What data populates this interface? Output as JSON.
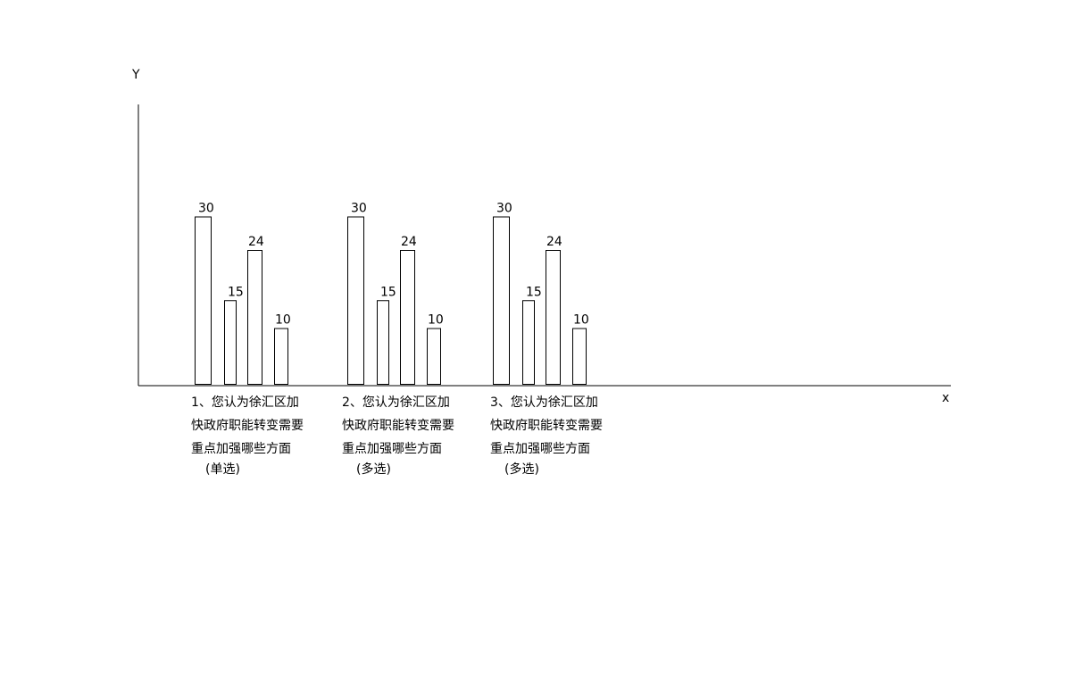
{
  "chart_data": {
    "type": "bar",
    "title": "",
    "xlabel": "x",
    "ylabel": "Y",
    "ylim": [
      0,
      40
    ],
    "grid": false,
    "legend": "none",
    "categories": [
      {
        "lines": [
          "1、您认为徐汇区加",
          "快政府职能转变需要",
          "重点加强哪些方面"
        ],
        "note": "(单选)"
      },
      {
        "lines": [
          "2、您认为徐汇区加",
          "快政府职能转变需要",
          "重点加强哪些方面"
        ],
        "note": "(多选)"
      },
      {
        "lines": [
          "3、您认为徐汇区加",
          "快政府职能转变需要",
          "重点加强哪些方面"
        ],
        "note": "(多选)"
      }
    ],
    "series_values": [
      [
        30,
        15,
        24,
        10
      ],
      [
        30,
        15,
        24,
        10
      ],
      [
        30,
        15,
        24,
        10
      ]
    ]
  }
}
